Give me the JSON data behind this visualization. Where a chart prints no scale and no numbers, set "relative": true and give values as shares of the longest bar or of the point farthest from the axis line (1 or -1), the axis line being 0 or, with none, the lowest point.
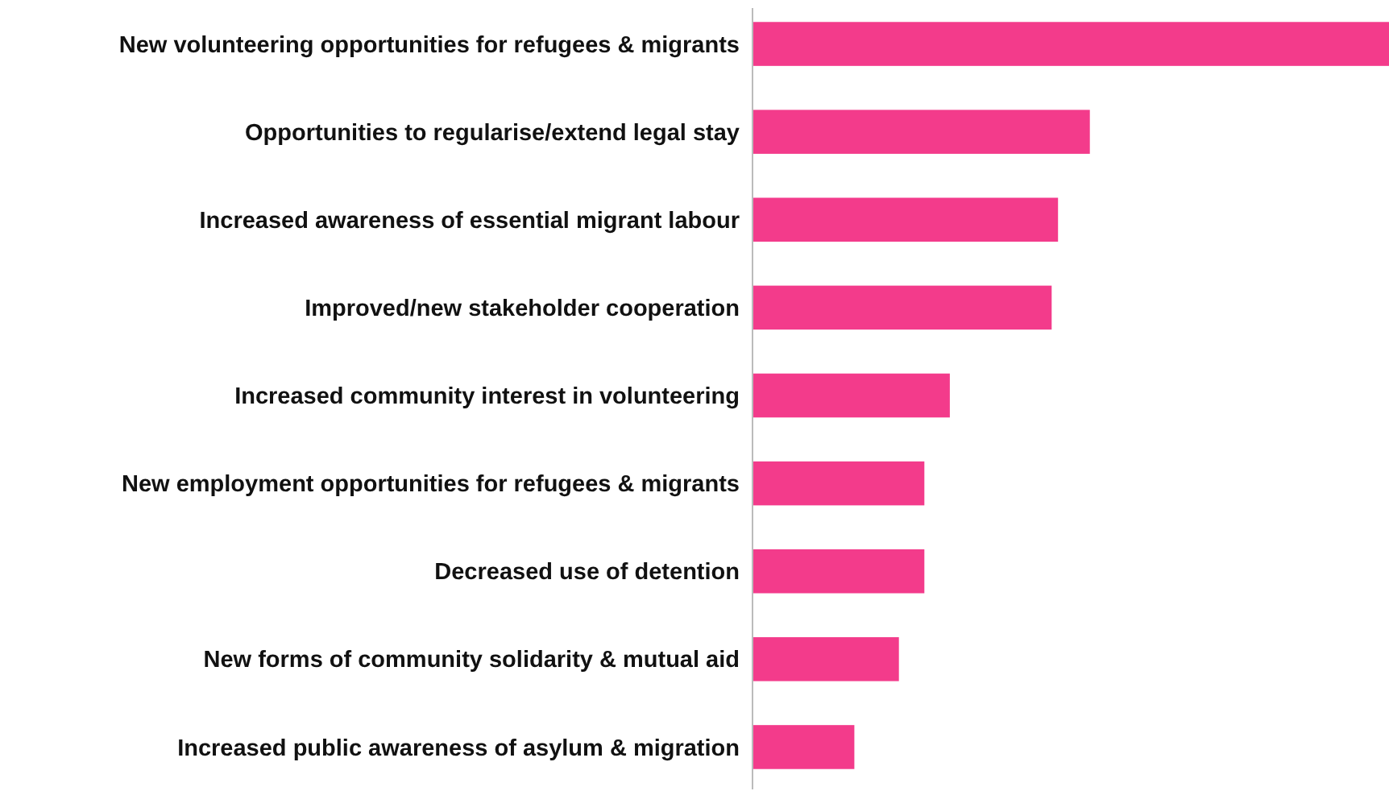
{
  "chart_data": {
    "type": "bar",
    "orientation": "horizontal",
    "relative": true,
    "categories": [
      "New volunteering opportunities for refugees & migrants",
      "Opportunities to regularise/extend legal stay",
      "Increased awareness of essential migrant labour",
      "Improved/new stakeholder cooperation",
      "Increased community interest in volunteering",
      "New employment opportunities for refugees & migrants",
      "Decreased use of detention",
      "New forms of community solidarity & mutual aid",
      "Increased public awareness of asylum & migration"
    ],
    "values": [
      1,
      0.53,
      0.48,
      0.47,
      0.31,
      0.27,
      0.27,
      0.23,
      0.16
    ],
    "color": "#f33b8b"
  }
}
